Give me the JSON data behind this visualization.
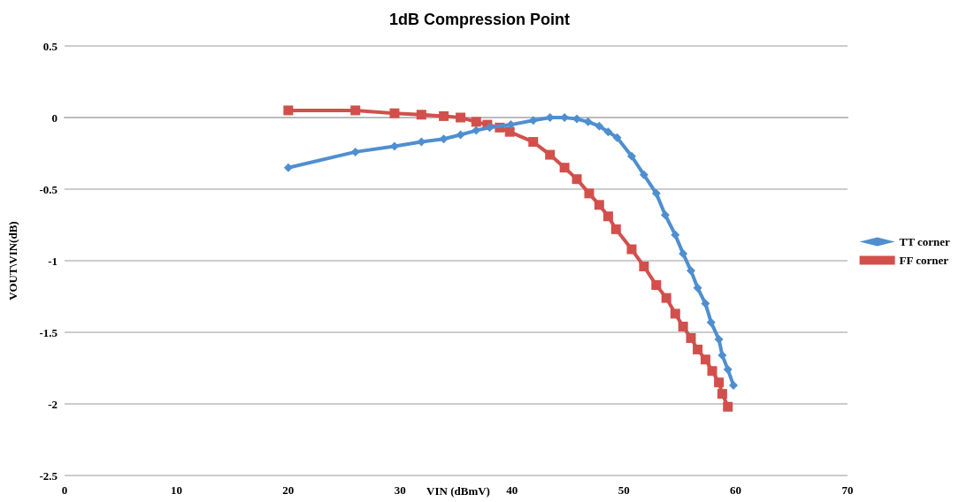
{
  "chart_data": {
    "type": "line",
    "title": "1dB Compression Point",
    "xlabel": "VIN (dBmV)",
    "ylabel": "VOUT\\VIN(dB)",
    "xlim": [
      0,
      70
    ],
    "xticks": [
      0,
      10,
      20,
      30,
      40,
      50,
      60,
      70
    ],
    "ylim": [
      -2.5,
      0.5
    ],
    "yticks": [
      -2.5,
      -2,
      -1.5,
      -1,
      -0.5,
      0,
      0.5
    ],
    "grid": "y",
    "legend": "right",
    "line_style": "solid",
    "series": [
      {
        "name": "TT corner",
        "color": "#4f8fd0",
        "marker": "diamond",
        "x": [
          20,
          26,
          29.5,
          31.9,
          33.9,
          35.4,
          36.8,
          38,
          39.9,
          41.9,
          43.4,
          44.7,
          45.8,
          46.8,
          47.8,
          48.6,
          49.4,
          50.7,
          51.8,
          52.9,
          53.7,
          54.6,
          55.3,
          56,
          56.6,
          57.3,
          57.8,
          58.5,
          58.8,
          59.3,
          59.8
        ],
        "values": [
          -0.35,
          -0.24,
          -0.2,
          -0.17,
          -0.15,
          -0.12,
          -0.09,
          -0.07,
          -0.05,
          -0.02,
          0,
          0,
          -0.01,
          -0.03,
          -0.06,
          -0.1,
          -0.14,
          -0.27,
          -0.4,
          -0.53,
          -0.68,
          -0.82,
          -0.95,
          -1.07,
          -1.19,
          -1.3,
          -1.43,
          -1.55,
          -1.66,
          -1.76,
          -1.87
        ]
      },
      {
        "name": "FF corner",
        "color": "#d2504c",
        "marker": "square",
        "x": [
          20,
          26,
          29.5,
          31.9,
          33.9,
          35.4,
          36.8,
          37.8,
          38.9,
          39.8,
          41.9,
          43.4,
          44.7,
          45.8,
          46.9,
          47.8,
          48.6,
          49.3,
          50.7,
          51.8,
          52.9,
          53.8,
          54.6,
          55.3,
          56,
          56.6,
          57.3,
          57.9,
          58.5,
          58.8,
          59.3
        ],
        "values": [
          0.05,
          0.05,
          0.03,
          0.02,
          0.01,
          0,
          -0.03,
          -0.05,
          -0.07,
          -0.1,
          -0.17,
          -0.26,
          -0.35,
          -0.43,
          -0.53,
          -0.61,
          -0.69,
          -0.78,
          -0.92,
          -1.04,
          -1.17,
          -1.26,
          -1.37,
          -1.46,
          -1.54,
          -1.62,
          -1.69,
          -1.77,
          -1.85,
          -1.93,
          -2.02
        ]
      }
    ]
  }
}
